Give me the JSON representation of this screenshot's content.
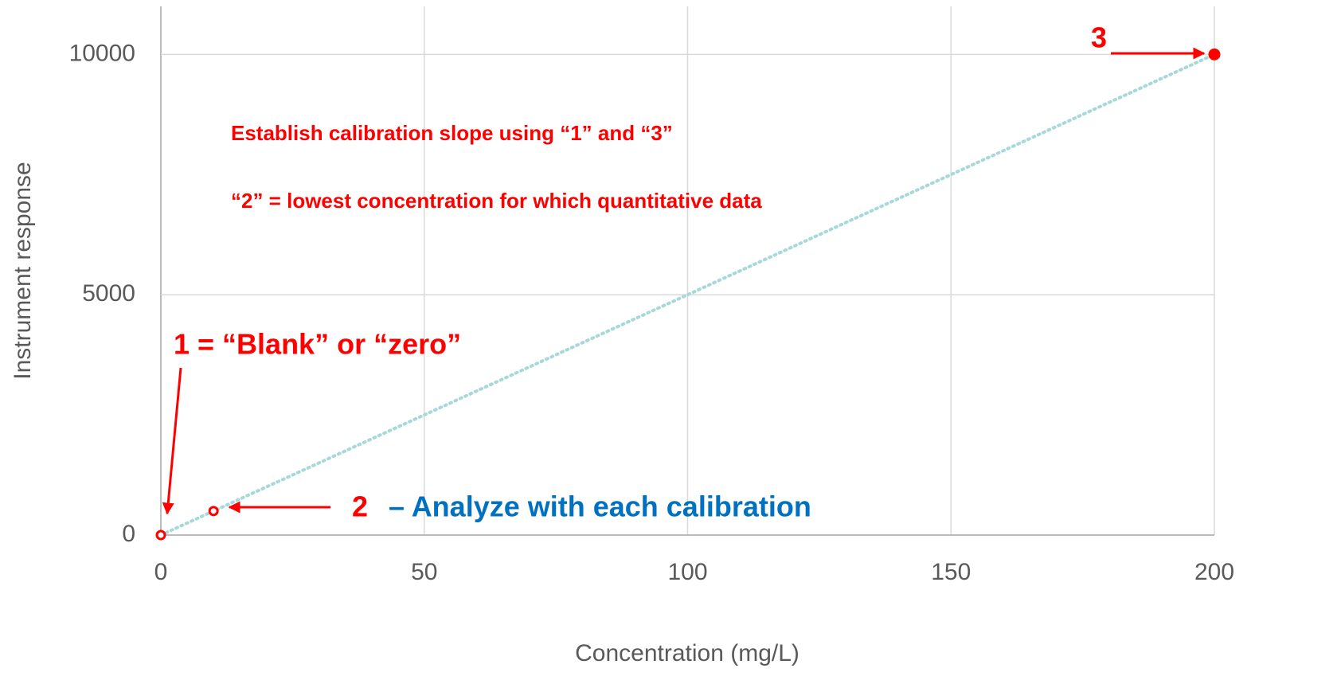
{
  "chart_data": {
    "type": "scatter",
    "x_label": "Concentration (mg/L)",
    "y_label": "Instrument response",
    "xlim": [
      0,
      200
    ],
    "xticks": [
      0,
      50,
      100,
      150,
      200
    ],
    "ylim": [
      0,
      11000
    ],
    "yticks": [
      0,
      5000,
      10000
    ],
    "grid": true,
    "series": [
      {
        "color": "#ff0000",
        "x": [
          0,
          10,
          200
        ],
        "y": [
          0,
          500,
          10000
        ],
        "markers": [
          "open",
          "open",
          "filled"
        ]
      }
    ],
    "trendline": {
      "color": "#a8d8d8",
      "x": [
        0,
        200
      ],
      "y": [
        0,
        10000
      ]
    },
    "annotations": [
      "3",
      "Establish calibration slope using “1” and “3”",
      "“2” = lowest concentration for which quantitative data",
      "1 = “Blank” or “zero”",
      "2",
      "– Analyze with each calibration"
    ]
  }
}
